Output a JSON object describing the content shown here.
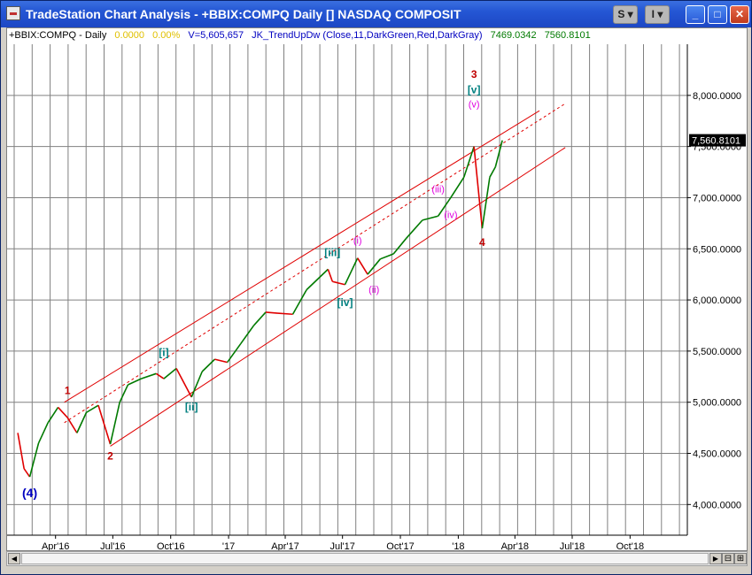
{
  "window": {
    "title": "TradeStation Chart Analysis - +BBIX:COMPQ Daily [] NASDAQ COMPOSIT",
    "buttons": {
      "s": "S",
      "i": "I",
      "minimize": "_",
      "maximize": "□",
      "close": "✕"
    }
  },
  "info": {
    "symbol": "+BBIX:COMPQ - Daily",
    "change": "0.0000",
    "change_pct": "0.00%",
    "volume": "V=5,605,657",
    "indicator": "JK_TrendUpDw (Close,11,DarkGreen,Red,DarkGray)",
    "val1": "7469.0342",
    "val2": "7560.8101"
  },
  "colors": {
    "up": "#007a00",
    "down": "#e00000",
    "channel": "#e00000",
    "grid": "#808080",
    "wave_teal": "#008080",
    "wave_magenta": "#e000e0",
    "wave_red": "#c00000",
    "wave_blue": "#0000c0"
  },
  "chart_data": {
    "type": "line",
    "title": "",
    "ylim": [
      3700,
      8500
    ],
    "price_labels": [
      "8,000.0000",
      "7,500.0000",
      "7,000.0000",
      "6,500.0000",
      "6,000.0000",
      "5,500.0000",
      "5,000.0000",
      "4,500.0000",
      "4,000.0000"
    ],
    "last_price_label": "7,560.8101",
    "x_tick_labels": [
      "Apr'16",
      "Jul'16",
      "Oct'16",
      "'17",
      "Apr'17",
      "Jul'17",
      "Oct'17",
      "'18",
      "Apr'18",
      "Jul'18",
      "Oct'18"
    ],
    "series": [
      {
        "x": [
          "2016-02-01",
          "2016-02-11",
          "2016-02-20",
          "2016-03-05",
          "2016-03-20",
          "2016-04-05",
          "2016-04-20",
          "2016-05-05",
          "2016-05-20",
          "2016-06-08",
          "2016-06-27",
          "2016-07-12",
          "2016-07-25",
          "2016-08-15",
          "2016-09-08",
          "2016-09-20",
          "2016-10-10",
          "2016-11-03",
          "2016-11-20",
          "2016-12-10",
          "2016-12-30",
          "2017-01-20",
          "2017-02-10",
          "2017-03-01",
          "2017-03-20",
          "2017-04-13",
          "2017-05-05",
          "2017-06-08",
          "2017-06-15",
          "2017-07-05",
          "2017-07-25",
          "2017-08-10",
          "2017-08-30",
          "2017-09-20",
          "2017-10-10",
          "2017-11-05",
          "2017-11-30",
          "2017-12-20",
          "2018-01-10",
          "2018-01-26",
          "2018-02-08",
          "2018-02-20",
          "2018-03-01",
          "2018-03-12"
        ],
        "values": [
          4700,
          4350,
          4270,
          4600,
          4800,
          4950,
          4850,
          4700,
          4900,
          4970,
          4590,
          5000,
          5170,
          5230,
          5280,
          5230,
          5330,
          5050,
          5300,
          5420,
          5390,
          5570,
          5750,
          5880,
          5870,
          5860,
          6100,
          6300,
          6180,
          6150,
          6410,
          6250,
          6400,
          6450,
          6600,
          6780,
          6820,
          7000,
          7200,
          7500,
          6700,
          7200,
          7300,
          7560
        ]
      }
    ],
    "wave_labels": [
      {
        "text": "1",
        "date": "2016-04-20",
        "price": 5080
      },
      {
        "text": "2",
        "date": "2016-06-27",
        "price": 4440
      },
      {
        "text": "[i]",
        "date": "2016-09-20",
        "price": 5450
      },
      {
        "text": "[ii]",
        "date": "2016-11-03",
        "price": 4920
      },
      {
        "text": "[iii]",
        "date": "2017-06-15",
        "price": 6430
      },
      {
        "text": "[iv]",
        "date": "2017-07-05",
        "price": 5940
      },
      {
        "text": "(i)",
        "date": "2017-07-25",
        "price": 6550
      },
      {
        "text": "(ii)",
        "date": "2017-08-20",
        "price": 6070
      },
      {
        "text": "(iii)",
        "date": "2017-11-30",
        "price": 7050
      },
      {
        "text": "(iv)",
        "date": "2017-12-20",
        "price": 6800
      },
      {
        "text": "3",
        "date": "2018-01-26",
        "price": 8170
      },
      {
        "text": "[v]",
        "date": "2018-01-26",
        "price": 8020
      },
      {
        "text": "(v)",
        "date": "2018-01-26",
        "price": 7880
      },
      {
        "text": "4",
        "date": "2018-02-08",
        "price": 6530
      },
      {
        "text": "(4)",
        "date": "2016-02-20",
        "price": 4070
      }
    ],
    "channel_lines": [
      {
        "style": "solid",
        "x": [
          "2016-04-15",
          "2018-05-10"
        ],
        "y": [
          5000,
          7850
        ]
      },
      {
        "style": "solid",
        "x": [
          "2016-06-27",
          "2018-06-20"
        ],
        "y": [
          4570,
          7490
        ]
      },
      {
        "style": "dashed",
        "x": [
          "2016-04-15",
          "2018-06-20"
        ],
        "y": [
          4800,
          7920
        ]
      }
    ]
  },
  "scrollbar": {
    "left": "◀",
    "right": "▶",
    "zoom_out": "⊟",
    "zoom_in": "⊞"
  }
}
